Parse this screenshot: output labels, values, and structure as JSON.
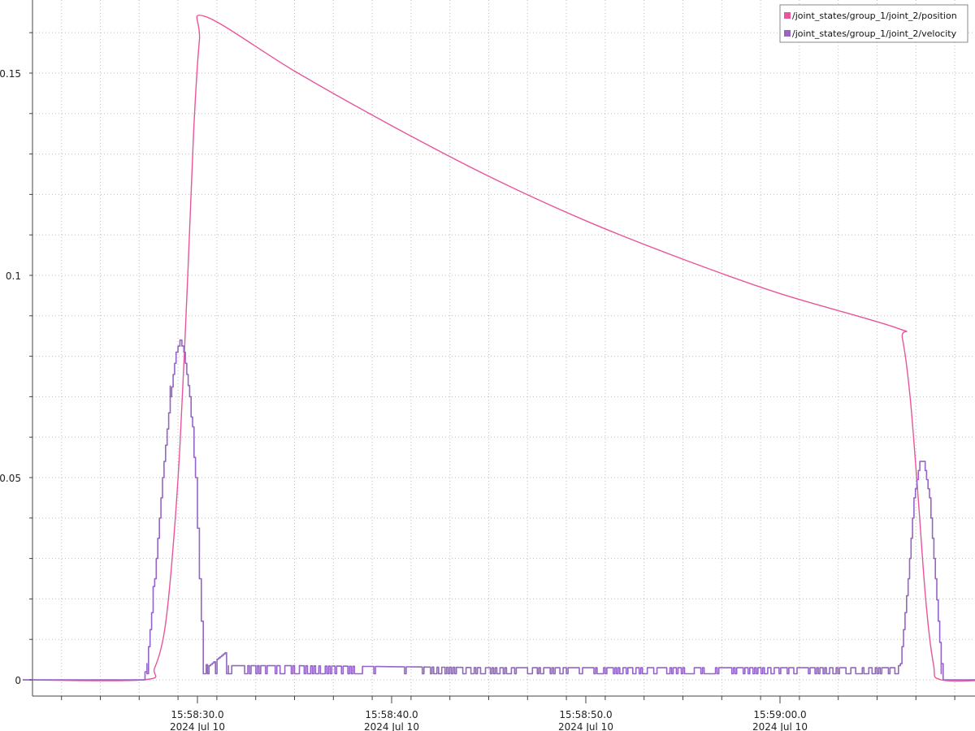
{
  "chart_data": {
    "type": "line",
    "title": "",
    "xlabel": "",
    "ylabel": "",
    "x_axis": {
      "type": "time",
      "range": [
        "2024-07-10 15:58:21.0",
        "2024-07-10 15:59:11.0"
      ],
      "major_ticks": [
        {
          "time": "15:58:30.0",
          "date": "2024 Jul 10"
        },
        {
          "time": "15:58:40.0",
          "date": "2024 Jul 10"
        },
        {
          "time": "15:58:50.0",
          "date": "2024 Jul 10"
        },
        {
          "time": "15:59:00.0",
          "date": "2024 Jul 10"
        }
      ]
    },
    "y_axis": {
      "range": [
        0,
        0.165
      ],
      "tick_labels": [
        "0",
        "0.05",
        "0.1",
        "0.15"
      ],
      "tick_values": [
        0,
        0.05,
        0.1,
        0.15
      ]
    },
    "grid": true,
    "legend_position": "top-right",
    "series": [
      {
        "name": "/joint_states/group_1/joint_2/position",
        "color": "#e8559b",
        "style": "smooth",
        "points": [
          {
            "t": "15:58:21.0",
            "y": 0
          },
          {
            "t": "15:58:27.2",
            "y": 0
          },
          {
            "t": "15:58:27.8",
            "y": 0.003
          },
          {
            "t": "15:58:28.3",
            "y": 0.012
          },
          {
            "t": "15:58:28.7",
            "y": 0.03
          },
          {
            "t": "15:58:29.1",
            "y": 0.058
          },
          {
            "t": "15:58:29.5",
            "y": 0.1
          },
          {
            "t": "15:58:29.8",
            "y": 0.135
          },
          {
            "t": "15:58:30.1",
            "y": 0.158
          },
          {
            "t": "15:58:30.4",
            "y": 0.164
          },
          {
            "t": "15:58:35.0",
            "y": 0.1505
          },
          {
            "t": "15:58:40.0",
            "y": 0.137
          },
          {
            "t": "15:58:45.0",
            "y": 0.1245
          },
          {
            "t": "15:58:50.0",
            "y": 0.1135
          },
          {
            "t": "15:58:55.0",
            "y": 0.104
          },
          {
            "t": "15:59:00.0",
            "y": 0.0955
          },
          {
            "t": "15:59:06.0",
            "y": 0.087
          },
          {
            "t": "15:59:06.3",
            "y": 0.0845
          },
          {
            "t": "15:59:06.7",
            "y": 0.07
          },
          {
            "t": "15:59:07.1",
            "y": 0.046
          },
          {
            "t": "15:59:07.5",
            "y": 0.02
          },
          {
            "t": "15:59:07.9",
            "y": 0.004
          },
          {
            "t": "15:59:08.3",
            "y": 0
          },
          {
            "t": "15:59:11.0",
            "y": 0
          }
        ]
      },
      {
        "name": "/joint_states/group_1/joint_2/velocity",
        "color": "#9465c4",
        "style": "step-noisy",
        "points": [
          {
            "t": "15:58:21.0",
            "y": 0
          },
          {
            "t": "15:58:27.2",
            "y": 0
          },
          {
            "t": "15:58:27.4",
            "y": 0.004
          },
          {
            "t": "15:58:27.8",
            "y": 0.025
          },
          {
            "t": "15:58:28.2",
            "y": 0.05
          },
          {
            "t": "15:58:28.6",
            "y": 0.07
          },
          {
            "t": "15:58:28.9",
            "y": 0.081
          },
          {
            "t": "15:58:29.1",
            "y": 0.084
          },
          {
            "t": "15:58:29.3",
            "y": 0.081
          },
          {
            "t": "15:58:29.6",
            "y": 0.07
          },
          {
            "t": "15:58:29.9",
            "y": 0.05
          },
          {
            "t": "15:58:30.1",
            "y": 0.025
          },
          {
            "t": "15:58:30.3",
            "y": 0.004
          },
          {
            "t": "15:58:30.6",
            "y": 0.0035
          },
          {
            "t": "15:58:31.5",
            "y": 0.007
          },
          {
            "t": "15:58:31.6",
            "y": 0.0035
          },
          {
            "t": "15:58:35.0",
            "y": 0.0035
          },
          {
            "t": "15:58:45.0",
            "y": 0.003
          },
          {
            "t": "15:58:55.0",
            "y": 0.003
          },
          {
            "t": "15:59:06.0",
            "y": 0.003
          },
          {
            "t": "15:59:06.2",
            "y": 0.004
          },
          {
            "t": "15:59:06.6",
            "y": 0.025
          },
          {
            "t": "15:59:06.9",
            "y": 0.045
          },
          {
            "t": "15:59:07.2",
            "y": 0.054
          },
          {
            "t": "15:59:07.4",
            "y": 0.054
          },
          {
            "t": "15:59:07.7",
            "y": 0.045
          },
          {
            "t": "15:59:08.0",
            "y": 0.025
          },
          {
            "t": "15:59:08.3",
            "y": 0.004
          },
          {
            "t": "15:59:08.4",
            "y": 0
          },
          {
            "t": "15:59:11.0",
            "y": 0
          }
        ]
      }
    ]
  }
}
